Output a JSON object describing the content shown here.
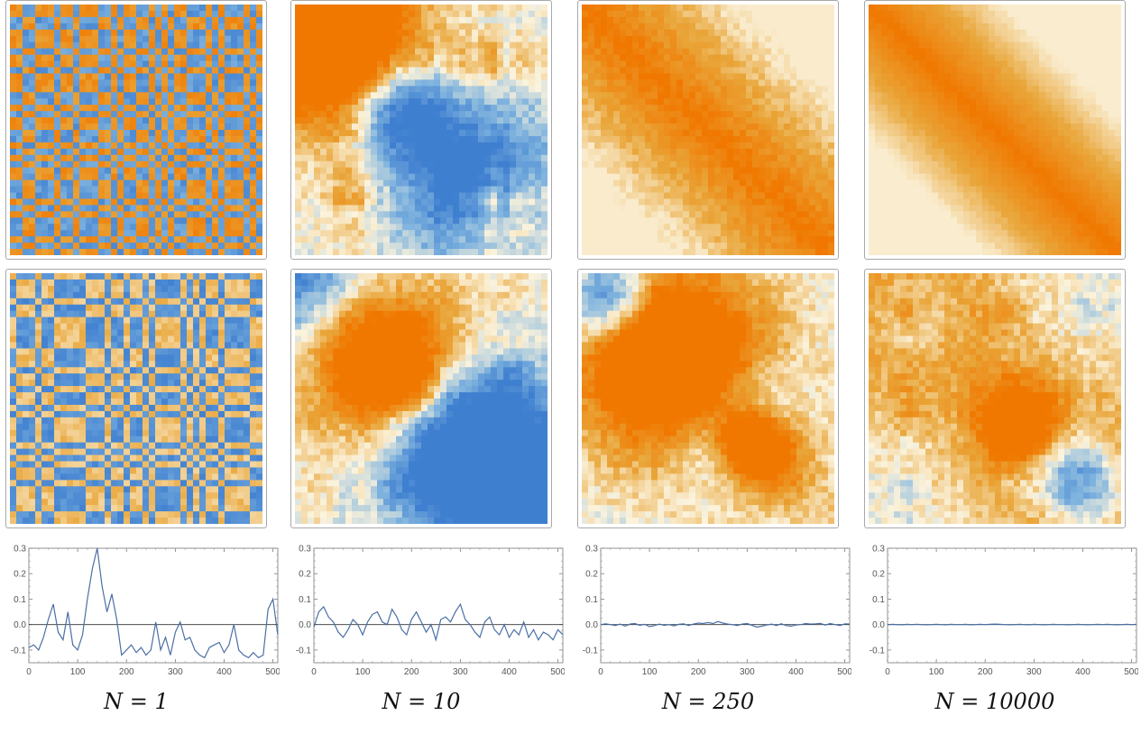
{
  "columns": [
    {
      "caption": "N = 1",
      "seed": 11,
      "top_mode": "stripes",
      "mid_mode": "stripes_blue"
    },
    {
      "caption": "N = 10",
      "seed": 23,
      "top_mode": "blocks",
      "mid_mode": "blocks"
    },
    {
      "caption": "N = 250",
      "seed": 37,
      "top_mode": "diag",
      "mid_mode": "blocks"
    },
    {
      "caption": "N = 10000",
      "seed": 53,
      "top_mode": "diag_smooth",
      "mid_mode": "blocks"
    }
  ],
  "colors": {
    "orange": "#f07800",
    "orange_light": "#e9a63a",
    "cream": "#fbf3dc",
    "blue": "#3f7fd0",
    "blue_light": "#7fb3de",
    "line": "#4a6fa5"
  },
  "chart_data": [
    {
      "type": "line",
      "series": [
        {
          "values": [
            -0.09,
            -0.08,
            -0.1,
            -0.05,
            0.02,
            0.08,
            -0.03,
            -0.06,
            0.05,
            -0.08,
            -0.1,
            -0.04,
            0.1,
            0.22,
            0.3,
            0.15,
            0.05,
            0.12,
            0.02,
            -0.12,
            -0.1,
            -0.08,
            -0.11,
            -0.09,
            -0.12,
            -0.1,
            0.01,
            -0.1,
            -0.05,
            -0.12,
            -0.03,
            0.01,
            -0.06,
            -0.05,
            -0.1,
            -0.12,
            -0.13,
            -0.09,
            -0.08,
            -0.07,
            -0.11,
            -0.08,
            0.0,
            -0.1,
            -0.12,
            -0.13,
            -0.11,
            -0.13,
            -0.12,
            0.06,
            0.1,
            -0.04
          ]
        }
      ],
      "x": [
        0,
        10,
        20,
        30,
        40,
        50,
        60,
        70,
        80,
        90,
        100,
        110,
        120,
        130,
        140,
        150,
        160,
        170,
        180,
        190,
        200,
        210,
        220,
        230,
        240,
        250,
        260,
        270,
        280,
        290,
        300,
        310,
        320,
        330,
        340,
        350,
        360,
        370,
        380,
        390,
        400,
        410,
        420,
        430,
        440,
        450,
        460,
        470,
        480,
        490,
        500,
        510
      ],
      "xlim": [
        0,
        510
      ],
      "ylim": [
        -0.15,
        0.3
      ],
      "xticks": [
        0,
        100,
        200,
        300,
        400,
        500
      ],
      "yticks": [
        -0.1,
        0.0,
        0.1,
        0.2,
        0.3
      ],
      "ytick_labels": [
        "-0.1",
        "0.0",
        "0.1",
        "0.2",
        "0.3"
      ]
    },
    {
      "type": "line",
      "series": [
        {
          "values": [
            -0.01,
            0.05,
            0.07,
            0.03,
            0.01,
            -0.03,
            -0.05,
            -0.02,
            0.02,
            0.0,
            -0.04,
            0.01,
            0.04,
            0.05,
            0.01,
            0.0,
            0.06,
            0.03,
            -0.02,
            -0.04,
            0.02,
            0.05,
            0.01,
            -0.03,
            0.0,
            -0.06,
            0.02,
            0.03,
            0.01,
            0.05,
            0.08,
            0.02,
            0.0,
            -0.03,
            -0.05,
            0.01,
            0.03,
            -0.02,
            -0.04,
            0.0,
            -0.05,
            -0.02,
            -0.04,
            0.01,
            -0.05,
            -0.02,
            -0.06,
            -0.03,
            -0.04,
            -0.06,
            -0.02,
            -0.04
          ]
        }
      ],
      "x": [
        0,
        10,
        20,
        30,
        40,
        50,
        60,
        70,
        80,
        90,
        100,
        110,
        120,
        130,
        140,
        150,
        160,
        170,
        180,
        190,
        200,
        210,
        220,
        230,
        240,
        250,
        260,
        270,
        280,
        290,
        300,
        310,
        320,
        330,
        340,
        350,
        360,
        370,
        380,
        390,
        400,
        410,
        420,
        430,
        440,
        450,
        460,
        470,
        480,
        490,
        500,
        510
      ],
      "xlim": [
        0,
        510
      ],
      "ylim": [
        -0.15,
        0.3
      ],
      "xticks": [
        0,
        100,
        200,
        300,
        400,
        500
      ],
      "yticks": [
        -0.1,
        0.0,
        0.1,
        0.2,
        0.3
      ],
      "ytick_labels": [
        "-0.1",
        "0.0",
        "0.1",
        "0.2",
        "0.3"
      ]
    },
    {
      "type": "line",
      "series": [
        {
          "values": [
            0.0,
            0.003,
            0.0,
            -0.004,
            0.002,
            -0.006,
            0.002,
            0.004,
            -0.003,
            0.001,
            -0.008,
            -0.004,
            0.002,
            -0.003,
            0.0,
            -0.005,
            0.001,
            0.003,
            -0.004,
            0.002,
            0.006,
            0.004,
            0.008,
            0.004,
            0.012,
            0.006,
            0.002,
            0.0,
            -0.004,
            0.002,
            0.004,
            -0.003,
            -0.01,
            -0.006,
            -0.002,
            0.002,
            -0.004,
            0.003,
            -0.004,
            -0.006,
            -0.002,
            0.0,
            0.004,
            0.002,
            0.003,
            0.005,
            -0.002,
            0.004,
            0.0,
            -0.004,
            0.003,
            0.002
          ]
        }
      ],
      "x": [
        0,
        10,
        20,
        30,
        40,
        50,
        60,
        70,
        80,
        90,
        100,
        110,
        120,
        130,
        140,
        150,
        160,
        170,
        180,
        190,
        200,
        210,
        220,
        230,
        240,
        250,
        260,
        270,
        280,
        290,
        300,
        310,
        320,
        330,
        340,
        350,
        360,
        370,
        380,
        390,
        400,
        410,
        420,
        430,
        440,
        450,
        460,
        470,
        480,
        490,
        500,
        510
      ],
      "xlim": [
        0,
        510
      ],
      "ylim": [
        -0.15,
        0.3
      ],
      "xticks": [
        0,
        100,
        200,
        300,
        400,
        500
      ],
      "yticks": [
        -0.1,
        0.0,
        0.1,
        0.2,
        0.3
      ],
      "ytick_labels": [
        "-0.1",
        "0.0",
        "0.1",
        "0.2",
        "0.3"
      ]
    },
    {
      "type": "line",
      "series": [
        {
          "values": [
            0.0,
            0.001,
            0.0,
            -0.001,
            0.001,
            0.0,
            0.001,
            0.0,
            -0.001,
            0.0,
            0.001,
            0.0,
            -0.001,
            0.001,
            0.0,
            0.0,
            0.001,
            -0.001,
            0.0,
            0.001,
            0.0,
            0.001,
            0.002,
            0.001,
            0.0,
            -0.001,
            0.0,
            0.001,
            0.0,
            -0.001,
            0.001,
            0.0,
            -0.001,
            0.0,
            0.001,
            0.0,
            0.0,
            -0.001,
            0.0,
            0.001,
            0.0,
            -0.001,
            0.0,
            0.001,
            0.0,
            0.001,
            0.0,
            -0.001,
            0.0,
            0.001,
            0.0,
            0.001
          ]
        }
      ],
      "x": [
        0,
        10,
        20,
        30,
        40,
        50,
        60,
        70,
        80,
        90,
        100,
        110,
        120,
        130,
        140,
        150,
        160,
        170,
        180,
        190,
        200,
        210,
        220,
        230,
        240,
        250,
        260,
        270,
        280,
        290,
        300,
        310,
        320,
        330,
        340,
        350,
        360,
        370,
        380,
        390,
        400,
        410,
        420,
        430,
        440,
        450,
        460,
        470,
        480,
        490,
        500,
        510
      ],
      "xlim": [
        0,
        510
      ],
      "ylim": [
        -0.15,
        0.3
      ],
      "xticks": [
        0,
        100,
        200,
        300,
        400,
        500
      ],
      "yticks": [
        -0.1,
        0.0,
        0.1,
        0.2,
        0.3
      ],
      "ytick_labels": [
        "-0.1",
        "0.0",
        "0.1",
        "0.2",
        "0.3"
      ]
    }
  ]
}
